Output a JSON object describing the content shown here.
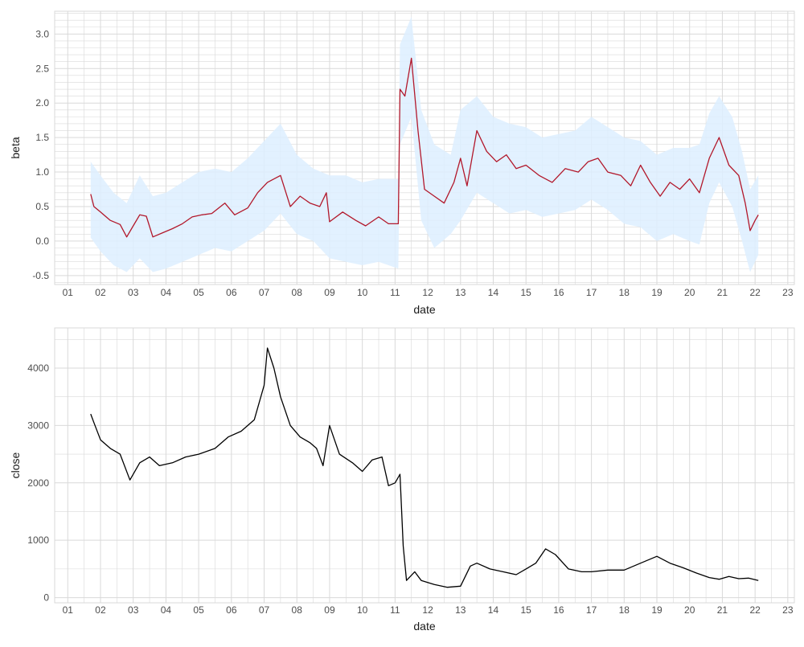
{
  "chart_data": [
    {
      "type": "line",
      "xlabel": "date",
      "ylabel": "beta",
      "x_unit": "year (two-digit labels, 01 = 2001)",
      "xlim": [
        2000.6,
        2023.2
      ],
      "ylim": [
        -0.63,
        3.33
      ],
      "x_ticks": [
        "01",
        "02",
        "03",
        "04",
        "05",
        "06",
        "07",
        "08",
        "09",
        "10",
        "11",
        "12",
        "13",
        "14",
        "15",
        "16",
        "17",
        "18",
        "19",
        "20",
        "21",
        "22",
        "23"
      ],
      "y_ticks": [
        "-0.5",
        "0.0",
        "0.5",
        "1.0",
        "1.5",
        "2.0",
        "2.5",
        "3.0"
      ],
      "grid": true,
      "legend": "none",
      "colors": {
        "line": "#b2182b",
        "band": "#ddeeff",
        "grid": "#d9d9d9",
        "panel_border": "#d9d9d9"
      },
      "series": [
        {
          "values": [
            {
              "x": 2001.7,
              "y": 0.68
            },
            {
              "x": 2001.8,
              "y": 0.5
            },
            {
              "x": 2002.0,
              "y": 0.42
            },
            {
              "x": 2002.3,
              "y": 0.3
            },
            {
              "x": 2002.6,
              "y": 0.24
            },
            {
              "x": 2002.8,
              "y": 0.06
            },
            {
              "x": 2003.0,
              "y": 0.22
            },
            {
              "x": 2003.2,
              "y": 0.38
            },
            {
              "x": 2003.4,
              "y": 0.36
            },
            {
              "x": 2003.6,
              "y": 0.06
            },
            {
              "x": 2003.9,
              "y": 0.12
            },
            {
              "x": 2004.2,
              "y": 0.18
            },
            {
              "x": 2004.5,
              "y": 0.25
            },
            {
              "x": 2004.8,
              "y": 0.35
            },
            {
              "x": 2005.1,
              "y": 0.38
            },
            {
              "x": 2005.4,
              "y": 0.4
            },
            {
              "x": 2005.8,
              "y": 0.55
            },
            {
              "x": 2006.1,
              "y": 0.38
            },
            {
              "x": 2006.5,
              "y": 0.48
            },
            {
              "x": 2006.8,
              "y": 0.7
            },
            {
              "x": 2007.1,
              "y": 0.85
            },
            {
              "x": 2007.5,
              "y": 0.95
            },
            {
              "x": 2007.8,
              "y": 0.5
            },
            {
              "x": 2008.1,
              "y": 0.65
            },
            {
              "x": 2008.4,
              "y": 0.55
            },
            {
              "x": 2008.7,
              "y": 0.5
            },
            {
              "x": 2008.9,
              "y": 0.7
            },
            {
              "x": 2009.0,
              "y": 0.28
            },
            {
              "x": 2009.4,
              "y": 0.42
            },
            {
              "x": 2009.8,
              "y": 0.3
            },
            {
              "x": 2010.1,
              "y": 0.22
            },
            {
              "x": 2010.5,
              "y": 0.35
            },
            {
              "x": 2010.8,
              "y": 0.25
            },
            {
              "x": 2011.1,
              "y": 0.25
            },
            {
              "x": 2011.15,
              "y": 2.2
            },
            {
              "x": 2011.3,
              "y": 2.1
            },
            {
              "x": 2011.5,
              "y": 2.65
            },
            {
              "x": 2011.7,
              "y": 1.6
            },
            {
              "x": 2011.9,
              "y": 0.75
            },
            {
              "x": 2012.2,
              "y": 0.65
            },
            {
              "x": 2012.5,
              "y": 0.55
            },
            {
              "x": 2012.8,
              "y": 0.85
            },
            {
              "x": 2013.0,
              "y": 1.2
            },
            {
              "x": 2013.2,
              "y": 0.8
            },
            {
              "x": 2013.5,
              "y": 1.6
            },
            {
              "x": 2013.8,
              "y": 1.3
            },
            {
              "x": 2014.1,
              "y": 1.15
            },
            {
              "x": 2014.4,
              "y": 1.25
            },
            {
              "x": 2014.7,
              "y": 1.05
            },
            {
              "x": 2015.0,
              "y": 1.1
            },
            {
              "x": 2015.4,
              "y": 0.95
            },
            {
              "x": 2015.8,
              "y": 0.85
            },
            {
              "x": 2016.2,
              "y": 1.05
            },
            {
              "x": 2016.6,
              "y": 1.0
            },
            {
              "x": 2016.9,
              "y": 1.15
            },
            {
              "x": 2017.2,
              "y": 1.2
            },
            {
              "x": 2017.5,
              "y": 1.0
            },
            {
              "x": 2017.9,
              "y": 0.95
            },
            {
              "x": 2018.2,
              "y": 0.8
            },
            {
              "x": 2018.5,
              "y": 1.1
            },
            {
              "x": 2018.8,
              "y": 0.85
            },
            {
              "x": 2019.1,
              "y": 0.65
            },
            {
              "x": 2019.4,
              "y": 0.85
            },
            {
              "x": 2019.7,
              "y": 0.75
            },
            {
              "x": 2020.0,
              "y": 0.9
            },
            {
              "x": 2020.3,
              "y": 0.7
            },
            {
              "x": 2020.6,
              "y": 1.2
            },
            {
              "x": 2020.9,
              "y": 1.5
            },
            {
              "x": 2021.2,
              "y": 1.1
            },
            {
              "x": 2021.5,
              "y": 0.95
            },
            {
              "x": 2021.7,
              "y": 0.55
            },
            {
              "x": 2021.85,
              "y": 0.15
            },
            {
              "x": 2022.0,
              "y": 0.3
            },
            {
              "x": 2022.1,
              "y": 0.38
            }
          ]
        },
        {
          "kind": "band",
          "values": [
            {
              "x": 2001.7,
              "lo": 0.05,
              "hi": 1.15
            },
            {
              "x": 2002.0,
              "lo": -0.15,
              "hi": 0.95
            },
            {
              "x": 2002.4,
              "lo": -0.35,
              "hi": 0.7
            },
            {
              "x": 2002.8,
              "lo": -0.45,
              "hi": 0.55
            },
            {
              "x": 2003.2,
              "lo": -0.25,
              "hi": 0.95
            },
            {
              "x": 2003.6,
              "lo": -0.45,
              "hi": 0.65
            },
            {
              "x": 2004.0,
              "lo": -0.4,
              "hi": 0.7
            },
            {
              "x": 2004.5,
              "lo": -0.3,
              "hi": 0.85
            },
            {
              "x": 2005.0,
              "lo": -0.2,
              "hi": 1.0
            },
            {
              "x": 2005.5,
              "lo": -0.1,
              "hi": 1.05
            },
            {
              "x": 2006.0,
              "lo": -0.15,
              "hi": 1.0
            },
            {
              "x": 2006.5,
              "lo": 0.0,
              "hi": 1.2
            },
            {
              "x": 2007.0,
              "lo": 0.15,
              "hi": 1.45
            },
            {
              "x": 2007.5,
              "lo": 0.4,
              "hi": 1.7
            },
            {
              "x": 2008.0,
              "lo": 0.1,
              "hi": 1.25
            },
            {
              "x": 2008.5,
              "lo": 0.0,
              "hi": 1.05
            },
            {
              "x": 2009.0,
              "lo": -0.25,
              "hi": 0.95
            },
            {
              "x": 2009.5,
              "lo": -0.3,
              "hi": 0.95
            },
            {
              "x": 2010.0,
              "lo": -0.35,
              "hi": 0.85
            },
            {
              "x": 2010.5,
              "lo": -0.3,
              "hi": 0.9
            },
            {
              "x": 2011.1,
              "lo": -0.4,
              "hi": 0.9
            },
            {
              "x": 2011.15,
              "lo": 1.4,
              "hi": 2.85
            },
            {
              "x": 2011.5,
              "lo": 1.8,
              "hi": 3.25
            },
            {
              "x": 2011.8,
              "lo": 0.3,
              "hi": 1.9
            },
            {
              "x": 2012.2,
              "lo": -0.1,
              "hi": 1.4
            },
            {
              "x": 2012.7,
              "lo": 0.1,
              "hi": 1.25
            },
            {
              "x": 2013.0,
              "lo": 0.3,
              "hi": 1.9
            },
            {
              "x": 2013.5,
              "lo": 0.7,
              "hi": 2.1
            },
            {
              "x": 2014.0,
              "lo": 0.55,
              "hi": 1.8
            },
            {
              "x": 2014.5,
              "lo": 0.4,
              "hi": 1.7
            },
            {
              "x": 2015.0,
              "lo": 0.45,
              "hi": 1.65
            },
            {
              "x": 2015.5,
              "lo": 0.35,
              "hi": 1.5
            },
            {
              "x": 2016.0,
              "lo": 0.4,
              "hi": 1.55
            },
            {
              "x": 2016.5,
              "lo": 0.45,
              "hi": 1.6
            },
            {
              "x": 2017.0,
              "lo": 0.6,
              "hi": 1.8
            },
            {
              "x": 2017.5,
              "lo": 0.45,
              "hi": 1.65
            },
            {
              "x": 2018.0,
              "lo": 0.25,
              "hi": 1.5
            },
            {
              "x": 2018.5,
              "lo": 0.2,
              "hi": 1.45
            },
            {
              "x": 2019.0,
              "lo": 0.0,
              "hi": 1.25
            },
            {
              "x": 2019.5,
              "lo": 0.1,
              "hi": 1.35
            },
            {
              "x": 2020.0,
              "lo": 0.0,
              "hi": 1.35
            },
            {
              "x": 2020.3,
              "lo": -0.05,
              "hi": 1.4
            },
            {
              "x": 2020.6,
              "lo": 0.55,
              "hi": 1.85
            },
            {
              "x": 2020.9,
              "lo": 0.85,
              "hi": 2.1
            },
            {
              "x": 2021.3,
              "lo": 0.5,
              "hi": 1.8
            },
            {
              "x": 2021.6,
              "lo": 0.0,
              "hi": 1.3
            },
            {
              "x": 2021.85,
              "lo": -0.45,
              "hi": 0.75
            },
            {
              "x": 2022.1,
              "lo": -0.2,
              "hi": 0.95
            }
          ]
        }
      ]
    },
    {
      "type": "line",
      "xlabel": "date",
      "ylabel": "close",
      "x_unit": "year (two-digit labels, 01 = 2001)",
      "xlim": [
        2000.6,
        2023.2
      ],
      "ylim": [
        -90,
        4700
      ],
      "x_ticks": [
        "01",
        "02",
        "03",
        "04",
        "05",
        "06",
        "07",
        "08",
        "09",
        "10",
        "11",
        "12",
        "13",
        "14",
        "15",
        "16",
        "17",
        "18",
        "19",
        "20",
        "21",
        "22",
        "23"
      ],
      "y_ticks": [
        "0",
        "1000",
        "2000",
        "3000",
        "4000"
      ],
      "grid": true,
      "legend": "none",
      "colors": {
        "line": "#000000",
        "grid": "#d9d9d9",
        "panel_border": "#d9d9d9"
      },
      "series": [
        {
          "values": [
            {
              "x": 2001.7,
              "y": 3200
            },
            {
              "x": 2001.8,
              "y": 3050
            },
            {
              "x": 2002.0,
              "y": 2750
            },
            {
              "x": 2002.3,
              "y": 2600
            },
            {
              "x": 2002.6,
              "y": 2500
            },
            {
              "x": 2002.9,
              "y": 2050
            },
            {
              "x": 2003.2,
              "y": 2350
            },
            {
              "x": 2003.5,
              "y": 2450
            },
            {
              "x": 2003.8,
              "y": 2300
            },
            {
              "x": 2004.2,
              "y": 2350
            },
            {
              "x": 2004.6,
              "y": 2450
            },
            {
              "x": 2005.0,
              "y": 2500
            },
            {
              "x": 2005.5,
              "y": 2600
            },
            {
              "x": 2005.9,
              "y": 2800
            },
            {
              "x": 2006.3,
              "y": 2900
            },
            {
              "x": 2006.7,
              "y": 3100
            },
            {
              "x": 2007.0,
              "y": 3700
            },
            {
              "x": 2007.1,
              "y": 4350
            },
            {
              "x": 2007.3,
              "y": 4000
            },
            {
              "x": 2007.5,
              "y": 3500
            },
            {
              "x": 2007.8,
              "y": 3000
            },
            {
              "x": 2008.1,
              "y": 2800
            },
            {
              "x": 2008.4,
              "y": 2700
            },
            {
              "x": 2008.6,
              "y": 2600
            },
            {
              "x": 2008.8,
              "y": 2300
            },
            {
              "x": 2009.0,
              "y": 3000
            },
            {
              "x": 2009.3,
              "y": 2500
            },
            {
              "x": 2009.7,
              "y": 2350
            },
            {
              "x": 2010.0,
              "y": 2200
            },
            {
              "x": 2010.3,
              "y": 2400
            },
            {
              "x": 2010.6,
              "y": 2450
            },
            {
              "x": 2010.8,
              "y": 1950
            },
            {
              "x": 2011.0,
              "y": 2000
            },
            {
              "x": 2011.15,
              "y": 2150
            },
            {
              "x": 2011.25,
              "y": 900
            },
            {
              "x": 2011.35,
              "y": 300
            },
            {
              "x": 2011.6,
              "y": 450
            },
            {
              "x": 2011.8,
              "y": 300
            },
            {
              "x": 2012.2,
              "y": 230
            },
            {
              "x": 2012.6,
              "y": 180
            },
            {
              "x": 2013.0,
              "y": 200
            },
            {
              "x": 2013.3,
              "y": 550
            },
            {
              "x": 2013.5,
              "y": 600
            },
            {
              "x": 2013.9,
              "y": 500
            },
            {
              "x": 2014.3,
              "y": 450
            },
            {
              "x": 2014.7,
              "y": 400
            },
            {
              "x": 2015.0,
              "y": 500
            },
            {
              "x": 2015.3,
              "y": 600
            },
            {
              "x": 2015.6,
              "y": 850
            },
            {
              "x": 2015.9,
              "y": 750
            },
            {
              "x": 2016.3,
              "y": 500
            },
            {
              "x": 2016.7,
              "y": 450
            },
            {
              "x": 2017.0,
              "y": 450
            },
            {
              "x": 2017.5,
              "y": 480
            },
            {
              "x": 2018.0,
              "y": 480
            },
            {
              "x": 2018.5,
              "y": 600
            },
            {
              "x": 2019.0,
              "y": 720
            },
            {
              "x": 2019.4,
              "y": 600
            },
            {
              "x": 2019.8,
              "y": 520
            },
            {
              "x": 2020.2,
              "y": 430
            },
            {
              "x": 2020.6,
              "y": 350
            },
            {
              "x": 2020.9,
              "y": 320
            },
            {
              "x": 2021.2,
              "y": 370
            },
            {
              "x": 2021.5,
              "y": 330
            },
            {
              "x": 2021.8,
              "y": 340
            },
            {
              "x": 2022.1,
              "y": 300
            }
          ]
        }
      ]
    }
  ]
}
